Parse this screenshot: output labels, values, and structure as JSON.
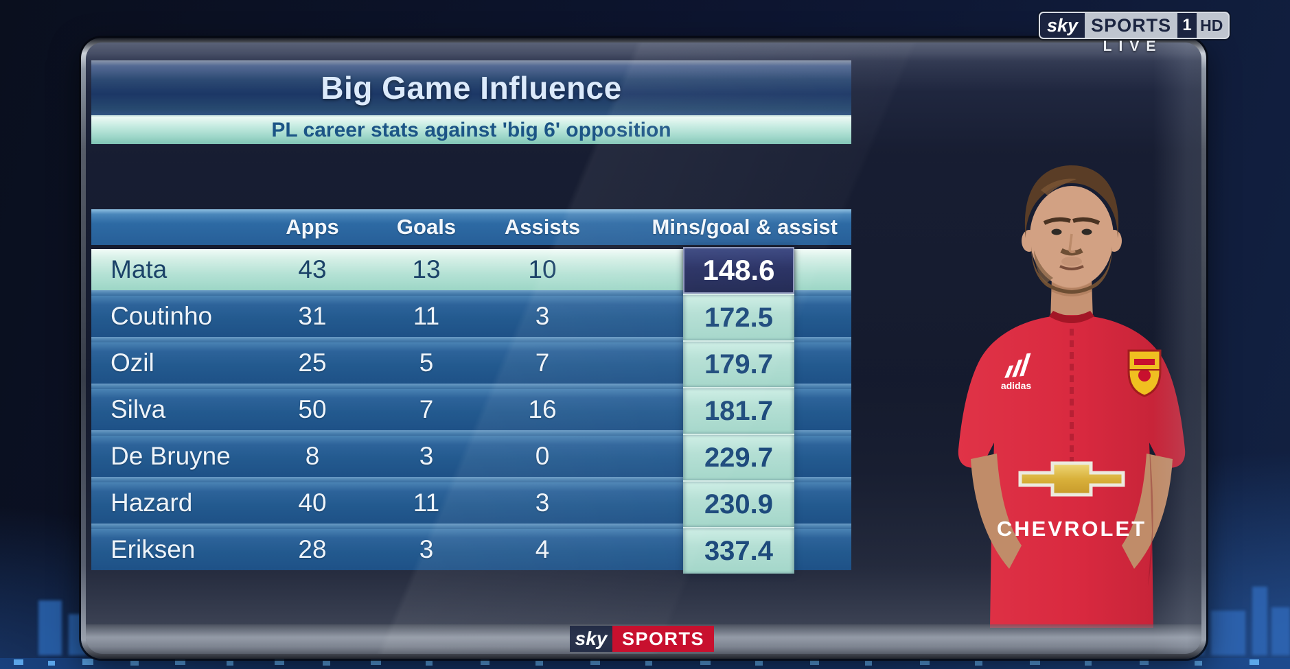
{
  "tv": {
    "channel_logo": {
      "sky": "sky",
      "sports": "SPORTS",
      "number": "1",
      "hd": "HD"
    },
    "live_label": "LIVE",
    "footer_logo": {
      "sky": "sky",
      "sports": "SPORTS"
    }
  },
  "panel": {
    "title": "Big Game Influence",
    "subtitle": "PL career stats against 'big 6' opposition"
  },
  "chart_data": {
    "type": "table",
    "title": "Big Game Influence",
    "subtitle": "PL career stats against 'big 6' opposition",
    "columns": [
      "",
      "Apps",
      "Goals",
      "Assists",
      "Mins/goal & assist"
    ],
    "highlighted_row": "Mata",
    "rows": [
      {
        "player": "Mata",
        "apps": 43,
        "goals": 13,
        "assists": 10,
        "mins_per_goal_and_assist": 148.6,
        "highlighted": true
      },
      {
        "player": "Coutinho",
        "apps": 31,
        "goals": 11,
        "assists": 3,
        "mins_per_goal_and_assist": 172.5,
        "highlighted": false
      },
      {
        "player": "Ozil",
        "apps": 25,
        "goals": 5,
        "assists": 7,
        "mins_per_goal_and_assist": 179.7,
        "highlighted": false
      },
      {
        "player": "Silva",
        "apps": 50,
        "goals": 7,
        "assists": 16,
        "mins_per_goal_and_assist": 181.7,
        "highlighted": false
      },
      {
        "player": "De Bruyne",
        "apps": 8,
        "goals": 3,
        "assists": 0,
        "mins_per_goal_and_assist": 229.7,
        "highlighted": false
      },
      {
        "player": "Hazard",
        "apps": 40,
        "goals": 11,
        "assists": 3,
        "mins_per_goal_and_assist": 230.9,
        "highlighted": false
      },
      {
        "player": "Eriksen",
        "apps": 28,
        "goals": 3,
        "assists": 4,
        "mins_per_goal_and_assist": 337.4,
        "highlighted": false
      }
    ]
  },
  "player_photo": {
    "shirt_brand": "adidas",
    "shirt_sponsor": "CHEVROLET"
  },
  "colors": {
    "row_blue": "#24598d",
    "row_separator": "#5b8fba",
    "highlight_mint": "#bfe7dc",
    "value_strip_mint": "#b7e0d6",
    "best_value_box": "#272f63",
    "title_bar_blue": "#1e3c6c",
    "subtitle_mint": "#a9ddd1",
    "sky_navy": "#1b2440",
    "sky_red": "#c8102e",
    "shirt_red": "#d8293f"
  }
}
